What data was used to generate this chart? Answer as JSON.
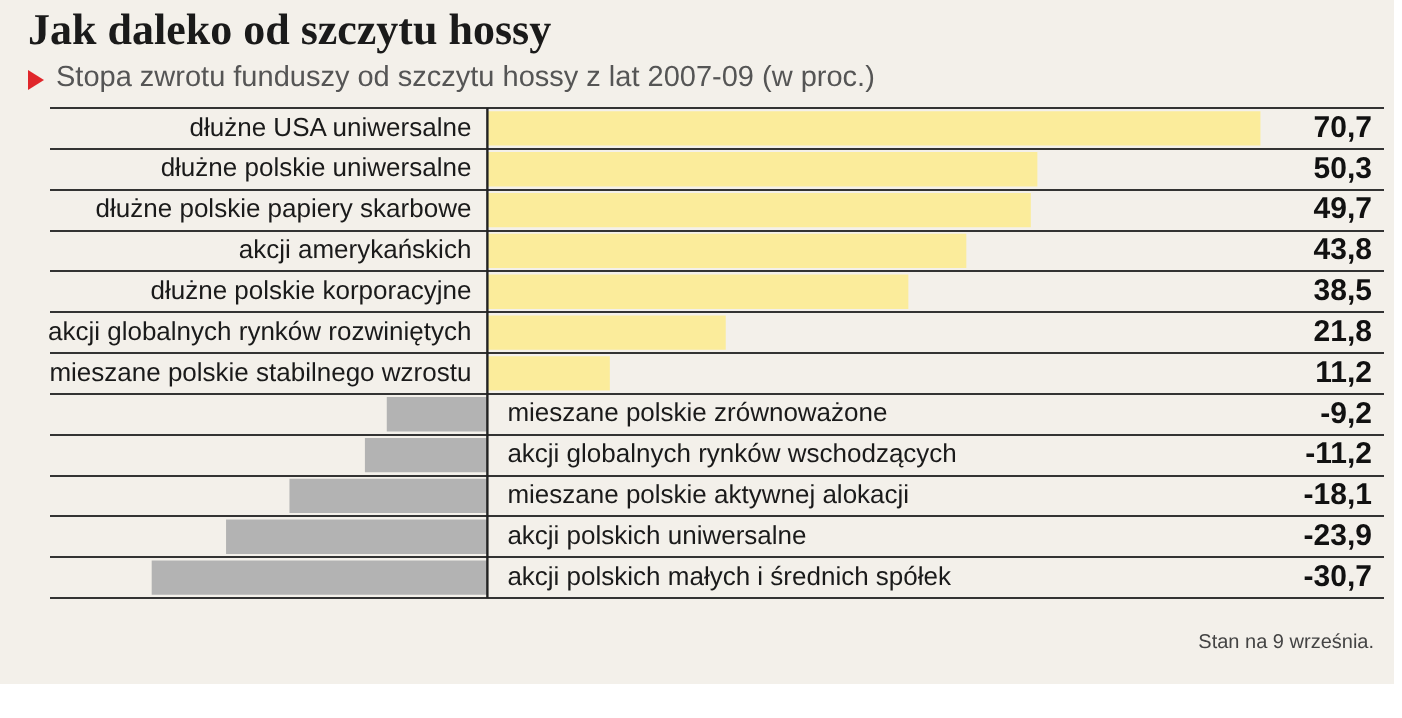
{
  "chart_data": {
    "type": "bar",
    "orientation": "horizontal",
    "title": "Jak daleko od szczytu hossy",
    "subtitle": "Stopa zwrotu funduszy od szczytu hossy z lat 2007-09 (w proc.)",
    "categories": [
      "dłużne USA uniwersalne",
      "dłużne polskie uniwersalne",
      "dłużne polskie papiery skarbowe",
      "akcji amerykańskich",
      "dłużne polskie korporacyjne",
      "akcji globalnych rynków rozwiniętych",
      "mieszane polskie stabilnego wzrostu",
      "mieszane polskie zrównoważone",
      "akcji globalnych rynków wschodzących",
      "mieszane polskie aktywnej alokacji",
      "akcji polskich uniwersalne",
      "akcji polskich małych i średnich spółek"
    ],
    "values": [
      70.7,
      50.3,
      49.7,
      43.8,
      38.5,
      21.8,
      11.2,
      -9.2,
      -11.2,
      -18.1,
      -23.9,
      -30.7
    ],
    "value_labels": [
      "70,7",
      "50,3",
      "49,7",
      "43,8",
      "38,5",
      "21,8",
      "11,2",
      "-9,2",
      "-11,2",
      "-18,1",
      "-23,9",
      "-30,7"
    ],
    "colors": [
      "#fbec9b",
      "#fbec9b",
      "#fbec9b",
      "#fbec9b",
      "#fbec9b",
      "#fbec9b",
      "#fbec9b",
      "#b3b3b3",
      "#b3b3b3",
      "#b3b3b3",
      "#b3b3b3",
      "#b3b3b3"
    ],
    "xlim": [
      -40,
      82
    ],
    "grid": "y",
    "tick_labels": "y",
    "legend": false,
    "annotations": [
      "Stan na 9 września."
    ]
  }
}
